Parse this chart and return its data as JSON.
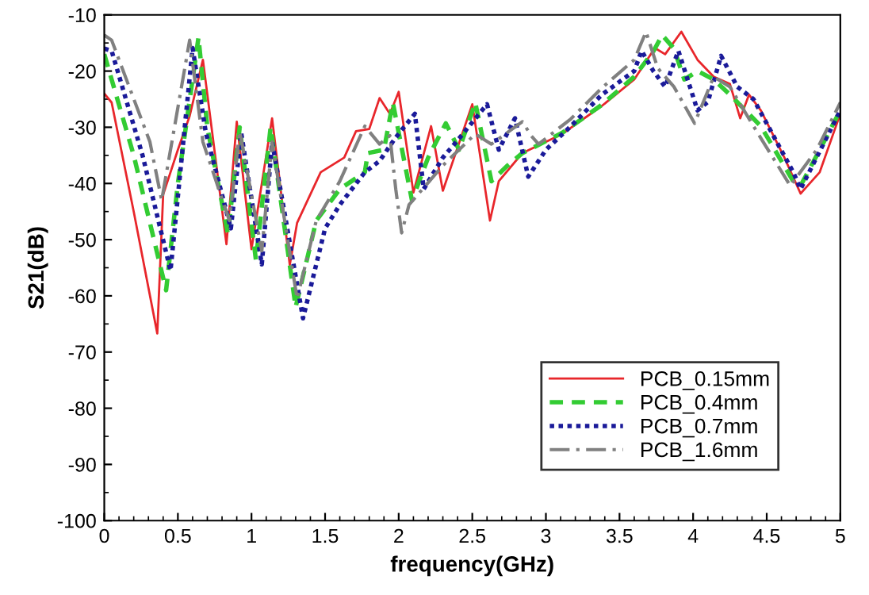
{
  "chart_data": {
    "type": "line",
    "xlabel": "frequency(GHz)",
    "ylabel": "S21(dB)",
    "xlim": [
      0,
      5
    ],
    "ylim": [
      -100,
      -10
    ],
    "xticks": [
      0,
      0.5,
      1,
      1.5,
      2,
      2.5,
      3,
      3.5,
      4,
      4.5,
      5
    ],
    "yticks": [
      -100,
      -90,
      -80,
      -70,
      -60,
      -50,
      -40,
      -30,
      -20,
      -10
    ],
    "grid": false,
    "legend": "bottom right",
    "marker": "none",
    "series": [
      {
        "name": "PCB_0.15mm",
        "color": "#e8262b",
        "line_style": "solid",
        "x": [
          0,
          0.05,
          0.2,
          0.36,
          0.4,
          0.5,
          0.58,
          0.67,
          0.83,
          0.9,
          1.0,
          1.14,
          1.26,
          1.31,
          1.47,
          1.63,
          1.71,
          1.8,
          1.87,
          1.94,
          2.0,
          2.1,
          2.22,
          2.3,
          2.5,
          2.62,
          2.68,
          2.84,
          3.11,
          3.38,
          3.6,
          3.74,
          3.81,
          3.92,
          4.03,
          4.14,
          4.25,
          4.32,
          4.38,
          4.46,
          4.62,
          4.73,
          4.86,
          5.0
        ],
        "values": [
          -24,
          -25.6,
          -45,
          -66.7,
          -42,
          -34,
          -28,
          -18,
          -50.8,
          -29,
          -51.7,
          -28.4,
          -54.5,
          -47,
          -38,
          -35.4,
          -30.7,
          -30.3,
          -24.8,
          -27.6,
          -23.7,
          -41.6,
          -29.8,
          -41.3,
          -25.9,
          -46.6,
          -39.6,
          -34.6,
          -31.2,
          -26.2,
          -21.5,
          -15.9,
          -17,
          -13,
          -18,
          -21,
          -22.3,
          -28.4,
          -24.2,
          -27,
          -35.4,
          -41.8,
          -38,
          -27.6
        ]
      },
      {
        "name": "PCB_0.4mm",
        "color": "#33cc33",
        "line_style": "dashed",
        "x": [
          0,
          0.05,
          0.2,
          0.42,
          0.5,
          0.64,
          0.7,
          0.84,
          0.92,
          1.03,
          1.13,
          1.3,
          1.44,
          1.6,
          1.77,
          1.79,
          1.9,
          1.96,
          2.09,
          2.2,
          2.32,
          2.41,
          2.52,
          2.63,
          2.74,
          2.84,
          3.11,
          3.38,
          3.6,
          3.73,
          3.79,
          3.87,
          3.94,
          4.03,
          4.14,
          4.25,
          4.46,
          4.68,
          4.73,
          4.84,
          5.0
        ],
        "values": [
          -17,
          -21.5,
          -35,
          -59,
          -40,
          -14,
          -30,
          -49,
          -30,
          -53.6,
          -30,
          -62,
          -46.6,
          -41,
          -38,
          -34.6,
          -34,
          -25.6,
          -43,
          -35.4,
          -29.3,
          -34,
          -25.6,
          -39.6,
          -36.8,
          -34.6,
          -31,
          -26,
          -21,
          -16.5,
          -13.6,
          -16,
          -21.5,
          -20,
          -21.5,
          -24.2,
          -29.8,
          -39.6,
          -40.4,
          -35,
          -27
        ]
      },
      {
        "name": "PCB_0.7mm",
        "color": "#1a1a99",
        "line_style": "dotted",
        "x": [
          0,
          0.05,
          0.26,
          0.45,
          0.6,
          0.69,
          0.86,
          0.93,
          1.07,
          1.14,
          1.35,
          1.5,
          1.6,
          1.77,
          1.87,
          1.98,
          2.11,
          2.17,
          2.3,
          2.41,
          2.6,
          2.68,
          2.79,
          2.88,
          3.0,
          3.17,
          3.38,
          3.6,
          3.65,
          3.73,
          3.81,
          3.9,
          4.03,
          4.1,
          4.19,
          4.3,
          4.41,
          4.68,
          4.73,
          5.0
        ],
        "values": [
          -16,
          -16.4,
          -35,
          -55.5,
          -15.9,
          -31,
          -48,
          -31,
          -54.4,
          -32.6,
          -64,
          -48,
          -43.8,
          -38,
          -36,
          -31.8,
          -27.6,
          -41,
          -35.4,
          -32,
          -25.9,
          -34,
          -28.4,
          -38.8,
          -34,
          -29.8,
          -24.2,
          -20,
          -16.4,
          -20,
          -22.8,
          -16.4,
          -27,
          -25.5,
          -17.3,
          -22.8,
          -25,
          -38,
          -41,
          -27
        ]
      },
      {
        "name": "PCB_1.6mm",
        "color": "#808080",
        "line_style": "dashdot",
        "x": [
          0,
          0.05,
          0.31,
          0.39,
          0.58,
          0.67,
          0.85,
          0.92,
          1.07,
          1.14,
          1.31,
          1.44,
          1.6,
          1.77,
          1.87,
          1.94,
          1.98,
          2.02,
          2.07,
          2.3,
          2.52,
          2.63,
          2.84,
          2.9,
          2.95,
          3.17,
          3.38,
          3.6,
          3.68,
          3.76,
          3.87,
          4.01,
          4.14,
          4.25,
          4.41,
          4.66,
          4.84,
          5.0
        ],
        "values": [
          -13.6,
          -14.5,
          -32.6,
          -43,
          -14.5,
          -32.6,
          -46.6,
          -30.7,
          -52,
          -32.6,
          -60.5,
          -46.6,
          -39.6,
          -29.8,
          -33,
          -31.5,
          -41,
          -48.8,
          -43.8,
          -36.8,
          -31.2,
          -33,
          -29,
          -31.5,
          -33,
          -28.5,
          -23,
          -18,
          -13,
          -19.5,
          -22.8,
          -29.3,
          -21,
          -22.8,
          -29.8,
          -40.4,
          -34,
          -25.6
        ]
      }
    ]
  }
}
